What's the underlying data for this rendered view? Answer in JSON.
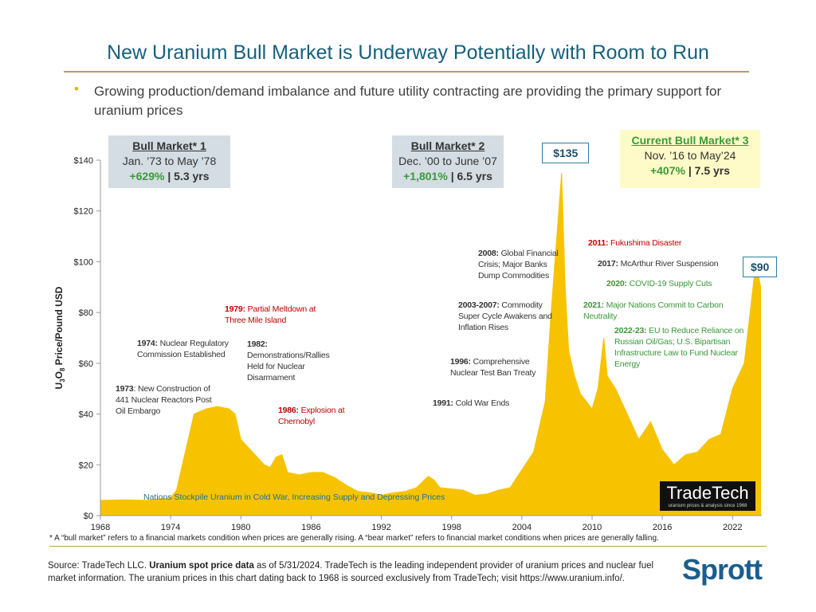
{
  "header": {
    "title": "New Uranium Bull Market is Underway Potentially with Room to Run",
    "bullet": "Growing production/demand imbalance and future utility contracting are providing the primary support for uranium prices"
  },
  "chart_data": {
    "type": "area",
    "y_label": [
      "U",
      "3",
      "O",
      "8",
      " Price/Pound USD"
    ],
    "color": "#f7c300",
    "x": [
      1968,
      1970,
      1972,
      1973,
      1974,
      1974.5,
      1975,
      1975.5,
      1976,
      1977,
      1978,
      1979,
      1979.5,
      1980,
      1981,
      1982,
      1982.5,
      1983,
      1983.5,
      1984,
      1985,
      1986,
      1987,
      1988,
      1989,
      1990,
      1991,
      1992,
      1993,
      1994,
      1995,
      1996,
      1996.5,
      1997,
      1998,
      1999,
      2000,
      2001,
      2002,
      2003,
      2004,
      2005,
      2006,
      2006.5,
      2007.4,
      2007.7,
      2008,
      2008.5,
      2009,
      2010,
      2010.5,
      2011,
      2011.3,
      2012,
      2013,
      2014,
      2015,
      2016,
      2017,
      2018,
      2019,
      2020,
      2021,
      2022,
      2023,
      2024,
      2024.4
    ],
    "values": [
      6,
      6.2,
      6,
      6.5,
      7,
      10,
      20,
      30,
      40,
      42,
      43,
      42,
      40,
      30,
      25,
      20,
      19,
      23,
      24,
      17,
      16,
      17,
      17,
      15,
      12,
      9.5,
      9,
      8,
      9,
      9.5,
      11,
      15.5,
      14,
      11,
      10.5,
      10,
      8,
      8.5,
      10,
      11,
      18,
      25,
      45,
      80,
      135,
      90,
      65,
      55,
      48,
      42,
      50,
      70,
      55,
      50,
      40,
      30,
      37,
      26,
      20,
      24,
      25,
      30,
      32,
      50,
      60,
      100,
      90
    ],
    "xlim": [
      1968,
      2024.5
    ],
    "xticks": [
      1968,
      1974,
      1980,
      1986,
      1992,
      1998,
      2004,
      2010,
      2016,
      2022
    ],
    "ylim": [
      0,
      140
    ],
    "yticks": [
      {
        "value": 0,
        "label": "$0"
      },
      {
        "value": 20,
        "label": "$20"
      },
      {
        "value": 40,
        "label": "$40"
      },
      {
        "value": 60,
        "label": "$60"
      },
      {
        "value": 80,
        "label": "$80"
      },
      {
        "value": 100,
        "label": "$100"
      },
      {
        "value": 120,
        "label": "$120"
      },
      {
        "value": 140,
        "label": "$140"
      }
    ],
    "grid": false,
    "callouts": [
      {
        "x": 2007.4,
        "value": 135,
        "label": "$135"
      },
      {
        "x": 2024,
        "value": 90,
        "label": "$90"
      }
    ],
    "bull_markets": [
      {
        "title": "Bull Market* 1",
        "period": "Jan. ’73 to May ’78",
        "gain": "+629%",
        "duration": "| 5.3 yrs"
      },
      {
        "title": "Bull Market* 2",
        "period": "Dec. ’00 to June ’07",
        "gain": "+1,801%",
        "duration": "| 6.5 yrs"
      },
      {
        "title": "Current Bull Market* 3",
        "period": "Nov. ’16 to May’24",
        "gain": "+407%",
        "duration": "| 7.5 yrs"
      }
    ],
    "annotations": [
      {
        "lead": "1973",
        "text": ": New Construction of 441 Nuclear Reactors Post Oil Embargo",
        "color": "#333333"
      },
      {
        "lead": "1974:",
        "text": " Nuclear Regulatory Commission Established",
        "color": "#333333"
      },
      {
        "lead": "1979:",
        "text": " Partial Meltdown at Three Mile Island",
        "color": "#c00000"
      },
      {
        "lead": "1982:",
        "text": " Demonstrations/Rallies Held for Nuclear Disarmament",
        "color": "#333333"
      },
      {
        "lead": "1986:",
        "text": " Explosion at Chernobyl",
        "color": "#c00000"
      },
      {
        "lead": "1991:",
        "text": " Cold War Ends",
        "color": "#333333"
      },
      {
        "lead": "1996:",
        "text": " Comprehensive Nuclear Test Ban Treaty",
        "color": "#333333"
      },
      {
        "lead": "2003-2007:",
        "text": " Commodity Super Cycle Awakens and Inflation Rises",
        "color": "#333333"
      },
      {
        "lead": "2008:",
        "text": " Global Financial Crisis; Major Banks Dump Commodities",
        "color": "#333333"
      },
      {
        "lead": "2011:",
        "text": " Fukushima Disaster",
        "color": "#c00000"
      },
      {
        "lead": "2017:",
        "text": " McArthur River Suspension",
        "color": "#333333"
      },
      {
        "lead": "2020:",
        "text": " COVID-19 Supply Cuts",
        "color": "#3a9a3a"
      },
      {
        "lead": "2021:",
        "text": " Major Nations Commit to Carbon Neutrality",
        "color": "#3a9a3a"
      },
      {
        "lead": "2022-23:",
        "text": " EU to Reduce Reliance on Russian Oil/Gas; U.S. Bipartisan Infrastructure Law to Fund Nuclear Energy",
        "color": "#3a9a3a"
      }
    ],
    "cold_war_note": "Nations Stockpile Uranium in Cold War, Increasing Supply and Depressing Prices"
  },
  "tradetech": {
    "name": "TradeTech",
    "tagline": "uranium prices & analysis since 1968"
  },
  "footnote": "* A “bull market” refers to a financial markets condition when prices are generally rising. A “bear market” refers to financial market conditions when prices are generally falling.",
  "source": {
    "lead": "Source: TradeTech LLC. ",
    "bold": "Uranium spot price data",
    "text": " as of 5/31/2024. TradeTech is the leading independent provider of uranium prices and nuclear fuel market information. The uranium prices in this chart dating back to 1968 is sourced exclusively from TradeTech; visit https://www.uranium.info/."
  },
  "logo": "Sprott"
}
